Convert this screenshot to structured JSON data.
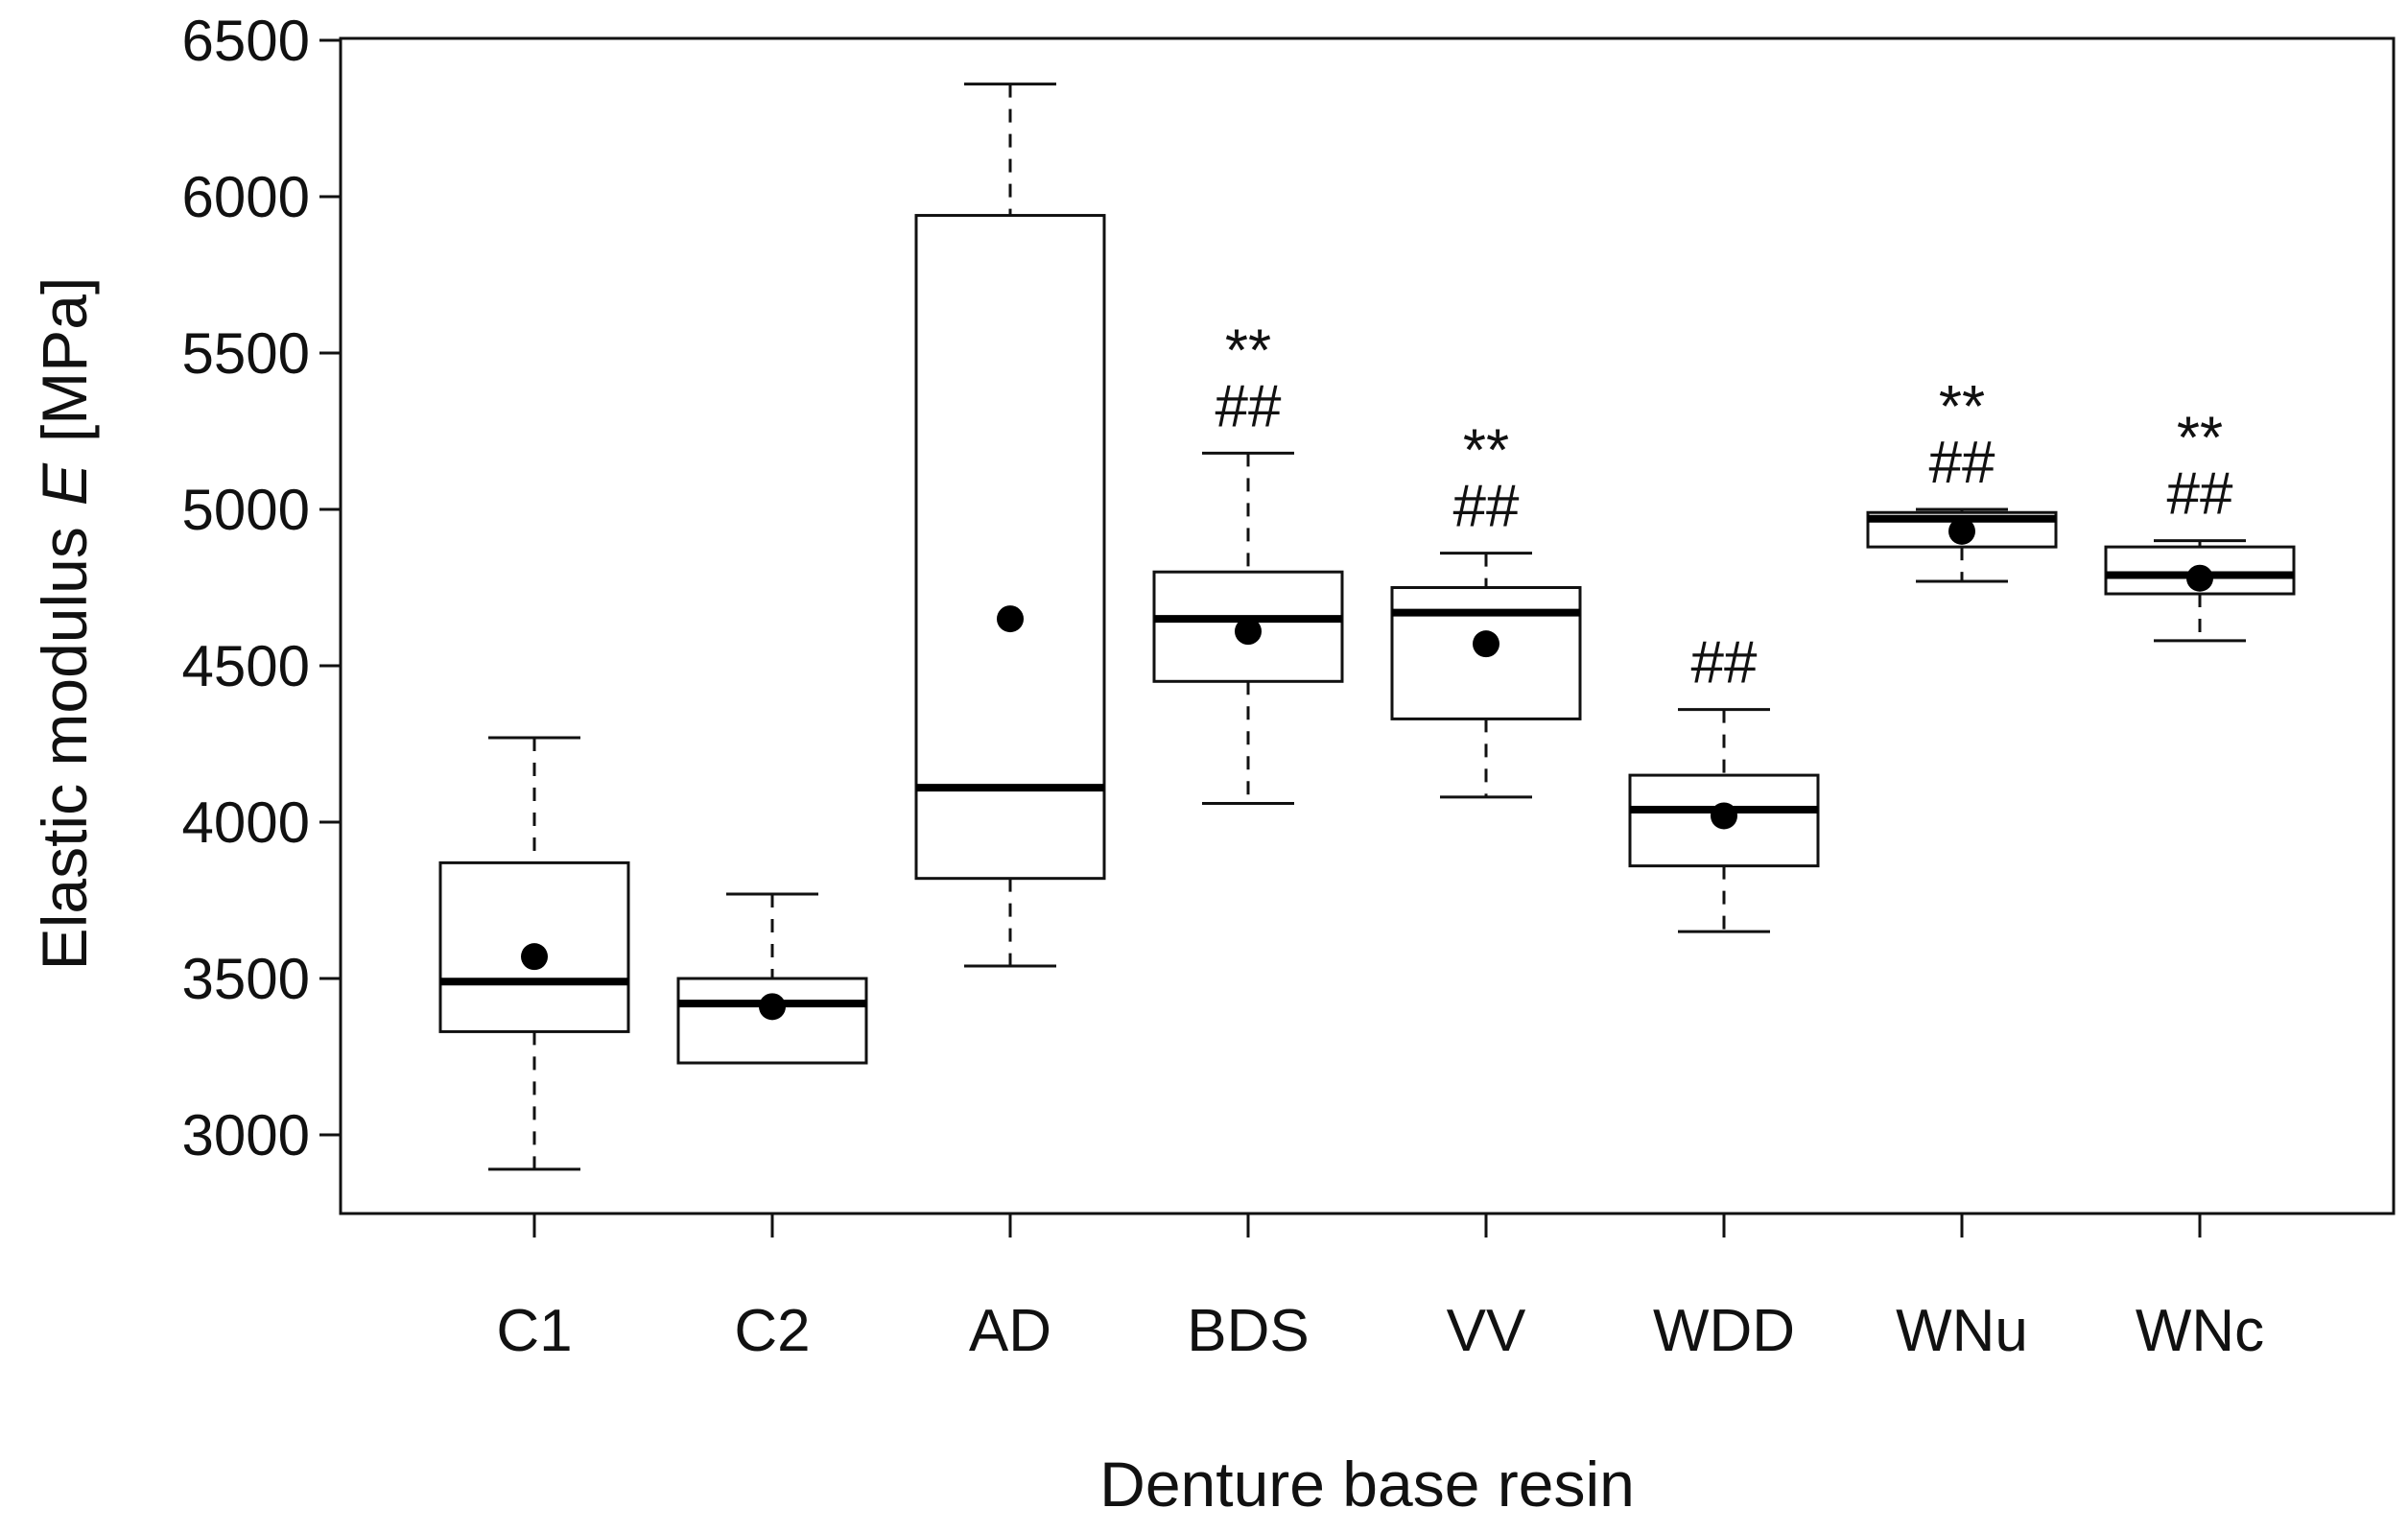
{
  "chart_data": {
    "type": "boxplot",
    "title": "",
    "xlabel": "Denture base resin",
    "ylabel_prefix": "Elastic modulus",
    "ylabel_symbol": "E",
    "ylabel_unit": "[MPa]",
    "ylim": [
      2750,
      6500
    ],
    "yticks": [
      3000,
      3500,
      4000,
      4500,
      5000,
      5500,
      6000,
      6500
    ],
    "grid": false,
    "categories": [
      "C1",
      "C2",
      "AD",
      "BDS",
      "VV",
      "WDD",
      "WNu",
      "WNc"
    ],
    "boxes": [
      {
        "name": "C1",
        "min": 2890,
        "q1": 3330,
        "median": 3490,
        "q3": 3870,
        "max": 4270,
        "mean": 3570,
        "sig_star": "",
        "sig_hash": ""
      },
      {
        "name": "C2",
        "min": 3230,
        "q1": 3230,
        "median": 3420,
        "q3": 3500,
        "max": 3770,
        "mean": 3410,
        "sig_star": "",
        "sig_hash": ""
      },
      {
        "name": "AD",
        "min": 3540,
        "q1": 3820,
        "median": 4110,
        "q3": 5940,
        "max": 6360,
        "mean": 4650,
        "sig_star": "",
        "sig_hash": ""
      },
      {
        "name": "BDS",
        "min": 4060,
        "q1": 4450,
        "median": 4650,
        "q3": 4800,
        "max": 5180,
        "mean": 4610,
        "sig_star": "**",
        "sig_hash": "##"
      },
      {
        "name": "VV",
        "min": 4080,
        "q1": 4330,
        "median": 4670,
        "q3": 4750,
        "max": 4860,
        "mean": 4570,
        "sig_star": "**",
        "sig_hash": "##"
      },
      {
        "name": "WDD",
        "min": 3650,
        "q1": 3860,
        "median": 4040,
        "q3": 4150,
        "max": 4360,
        "mean": 4020,
        "sig_star": "",
        "sig_hash": "##"
      },
      {
        "name": "WNu",
        "min": 4770,
        "q1": 4880,
        "median": 4970,
        "q3": 4990,
        "max": 5000,
        "mean": 4930,
        "sig_star": "**",
        "sig_hash": "##"
      },
      {
        "name": "WNc",
        "min": 4580,
        "q1": 4730,
        "median": 4790,
        "q3": 4880,
        "max": 4900,
        "mean": 4780,
        "sig_star": "**",
        "sig_hash": "##"
      }
    ]
  }
}
